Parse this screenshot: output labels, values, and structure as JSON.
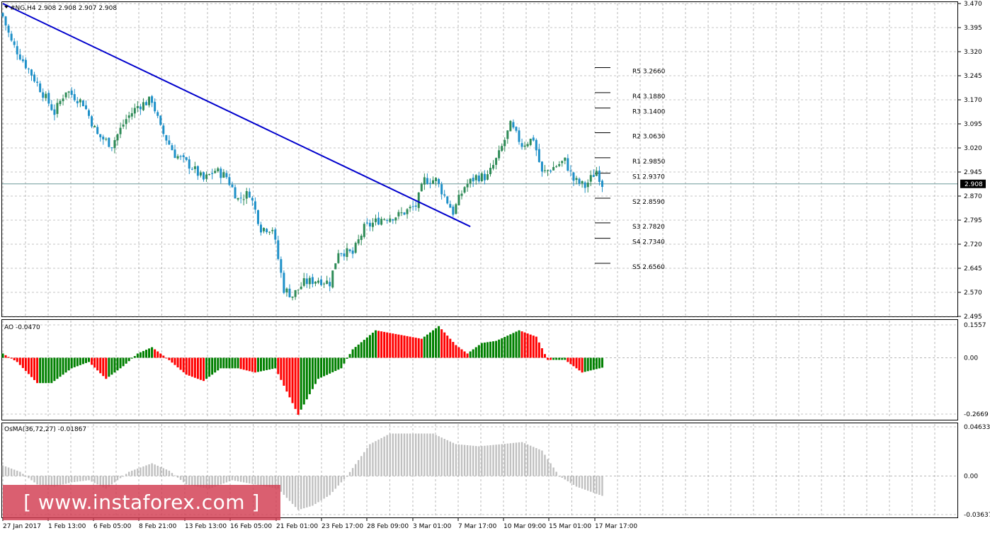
{
  "colors": {
    "trendline": "#0000cc",
    "candle_up": "#2e8b57",
    "candle_down": "#1e90c8",
    "ao_up": "#008000",
    "ao_down": "#ff0000",
    "osma": "#c0c0c0",
    "bid_line": "#6f9a9a",
    "watermark_bg": "#d23c50"
  },
  "main_panel": {
    "title": "#NG,H4  2.908 2.908 2.907 2.908",
    "current_price": "2.908",
    "y_ticks": [
      "3.470",
      "3.395",
      "3.320",
      "3.245",
      "3.170",
      "3.095",
      "3.020",
      "2.945",
      "2.870",
      "2.795",
      "2.720",
      "2.645",
      "2.570",
      "2.495"
    ],
    "pivot_levels": [
      {
        "label": "R5 3.2660",
        "value": 3.266
      },
      {
        "label": "R4 3.1880",
        "value": 3.188
      },
      {
        "label": "R3 3.1400",
        "value": 3.14
      },
      {
        "label": "R2 3.0630",
        "value": 3.063
      },
      {
        "label": "R1 2.9850",
        "value": 2.985
      },
      {
        "label": "S1 2.9370",
        "value": 2.937
      },
      {
        "label": "S2 2.8590",
        "value": 2.859
      },
      {
        "label": "S3 2.7820",
        "value": 2.782
      },
      {
        "label": "S4 2.7340",
        "value": 2.734
      },
      {
        "label": "S5 2.6560",
        "value": 2.656
      }
    ]
  },
  "ao_panel": {
    "title": "AO -0.0470",
    "y_ticks": [
      "0.1557",
      "0.00",
      "-0.2669"
    ]
  },
  "osma_panel": {
    "title": "OsMA(36,72,27) -0.01867",
    "y_ticks": [
      "0.04633",
      "0.00",
      "-0.03637"
    ]
  },
  "x_ticks": [
    "27 Jan 2017",
    "1 Feb 13:00",
    "6 Feb 05:00",
    "8 Feb 21:00",
    "13 Feb 13:00",
    "16 Feb 05:00",
    "21 Feb 01:00",
    "23 Feb 17:00",
    "28 Feb 09:00",
    "3 Mar 01:00",
    "7 Mar 17:00",
    "10 Mar 09:00",
    "15 Mar 01:00",
    "17 Mar 17:00"
  ],
  "watermark": "[ www.instaforex.com ]",
  "chart_data": {
    "type": "candlestick",
    "title": "#NG,H4  2.908 2.908 2.907 2.908",
    "ylim": [
      2.495,
      3.47
    ],
    "close_path": [
      {
        "t": 0,
        "p": 3.43
      },
      {
        "t": 3,
        "p": 3.35
      },
      {
        "t": 10,
        "p": 3.25
      },
      {
        "t": 18,
        "p": 3.13
      },
      {
        "t": 22,
        "p": 3.2
      },
      {
        "t": 28,
        "p": 3.16
      },
      {
        "t": 33,
        "p": 3.06
      },
      {
        "t": 38,
        "p": 3.03
      },
      {
        "t": 43,
        "p": 3.11
      },
      {
        "t": 47,
        "p": 3.15
      },
      {
        "t": 52,
        "p": 3.17
      },
      {
        "t": 55,
        "p": 3.08
      },
      {
        "t": 60,
        "p": 3.0
      },
      {
        "t": 66,
        "p": 2.96
      },
      {
        "t": 70,
        "p": 2.92
      },
      {
        "t": 74,
        "p": 2.95
      },
      {
        "t": 78,
        "p": 2.93
      },
      {
        "t": 82,
        "p": 2.86
      },
      {
        "t": 86,
        "p": 2.88
      },
      {
        "t": 90,
        "p": 2.77
      },
      {
        "t": 94,
        "p": 2.77
      },
      {
        "t": 98,
        "p": 2.58
      },
      {
        "t": 101,
        "p": 2.56
      },
      {
        "t": 105,
        "p": 2.6
      },
      {
        "t": 110,
        "p": 2.61
      },
      {
        "t": 114,
        "p": 2.6
      },
      {
        "t": 117,
        "p": 2.7
      },
      {
        "t": 122,
        "p": 2.69
      },
      {
        "t": 126,
        "p": 2.77
      },
      {
        "t": 132,
        "p": 2.8
      },
      {
        "t": 138,
        "p": 2.81
      },
      {
        "t": 144,
        "p": 2.84
      },
      {
        "t": 147,
        "p": 2.92
      },
      {
        "t": 151,
        "p": 2.92
      },
      {
        "t": 154,
        "p": 2.87
      },
      {
        "t": 157,
        "p": 2.82
      },
      {
        "t": 161,
        "p": 2.9
      },
      {
        "t": 165,
        "p": 2.93
      },
      {
        "t": 169,
        "p": 2.93
      },
      {
        "t": 173,
        "p": 3.0
      },
      {
        "t": 177,
        "p": 3.09
      },
      {
        "t": 181,
        "p": 3.03
      },
      {
        "t": 185,
        "p": 3.05
      },
      {
        "t": 188,
        "p": 2.94
      },
      {
        "t": 192,
        "p": 2.96
      },
      {
        "t": 196,
        "p": 2.98
      },
      {
        "t": 199,
        "p": 2.92
      },
      {
        "t": 203,
        "p": 2.9
      },
      {
        "t": 207,
        "p": 2.95
      },
      {
        "t": 209,
        "p": 2.908
      }
    ],
    "trendline": {
      "from": {
        "t": 0,
        "p": 3.47
      },
      "to": {
        "t": 163,
        "p": 2.775
      }
    },
    "ao_path": [
      {
        "t": 0,
        "p": 0.02
      },
      {
        "t": 5,
        "p": -0.02
      },
      {
        "t": 12,
        "p": -0.12
      },
      {
        "t": 17,
        "p": -0.12
      },
      {
        "t": 24,
        "p": -0.05
      },
      {
        "t": 30,
        "p": -0.02
      },
      {
        "t": 36,
        "p": -0.1
      },
      {
        "t": 42,
        "p": -0.04
      },
      {
        "t": 47,
        "p": 0.02
      },
      {
        "t": 52,
        "p": 0.05
      },
      {
        "t": 57,
        "p": 0.0
      },
      {
        "t": 64,
        "p": -0.08
      },
      {
        "t": 70,
        "p": -0.11
      },
      {
        "t": 76,
        "p": -0.05
      },
      {
        "t": 82,
        "p": -0.05
      },
      {
        "t": 88,
        "p": -0.07
      },
      {
        "t": 95,
        "p": -0.05
      },
      {
        "t": 103,
        "p": -0.27
      },
      {
        "t": 110,
        "p": -0.1
      },
      {
        "t": 118,
        "p": -0.05
      },
      {
        "t": 122,
        "p": 0.04
      },
      {
        "t": 130,
        "p": 0.13
      },
      {
        "t": 138,
        "p": 0.11
      },
      {
        "t": 146,
        "p": 0.09
      },
      {
        "t": 152,
        "p": 0.15
      },
      {
        "t": 158,
        "p": 0.06
      },
      {
        "t": 162,
        "p": 0.02
      },
      {
        "t": 167,
        "p": 0.07
      },
      {
        "t": 172,
        "p": 0.08
      },
      {
        "t": 180,
        "p": 0.13
      },
      {
        "t": 186,
        "p": 0.1
      },
      {
        "t": 190,
        "p": -0.01
      },
      {
        "t": 196,
        "p": -0.01
      },
      {
        "t": 202,
        "p": -0.07
      },
      {
        "t": 209,
        "p": -0.047
      }
    ],
    "osma_path": [
      {
        "t": 0,
        "p": 0.01
      },
      {
        "t": 6,
        "p": 0.004
      },
      {
        "t": 12,
        "p": -0.008
      },
      {
        "t": 18,
        "p": -0.01
      },
      {
        "t": 24,
        "p": -0.006
      },
      {
        "t": 30,
        "p": -0.004
      },
      {
        "t": 36,
        "p": -0.012
      },
      {
        "t": 44,
        "p": 0.004
      },
      {
        "t": 52,
        "p": 0.012
      },
      {
        "t": 58,
        "p": 0.005
      },
      {
        "t": 64,
        "p": -0.008
      },
      {
        "t": 72,
        "p": -0.012
      },
      {
        "t": 80,
        "p": -0.004
      },
      {
        "t": 88,
        "p": -0.008
      },
      {
        "t": 96,
        "p": -0.012
      },
      {
        "t": 103,
        "p": -0.032
      },
      {
        "t": 108,
        "p": -0.028
      },
      {
        "t": 114,
        "p": -0.018
      },
      {
        "t": 120,
        "p": 0.0
      },
      {
        "t": 128,
        "p": 0.03
      },
      {
        "t": 135,
        "p": 0.04
      },
      {
        "t": 143,
        "p": 0.04
      },
      {
        "t": 150,
        "p": 0.04
      },
      {
        "t": 158,
        "p": 0.03
      },
      {
        "t": 166,
        "p": 0.028
      },
      {
        "t": 174,
        "p": 0.03
      },
      {
        "t": 181,
        "p": 0.032
      },
      {
        "t": 188,
        "p": 0.024
      },
      {
        "t": 194,
        "p": 0.0
      },
      {
        "t": 200,
        "p": -0.01
      },
      {
        "t": 209,
        "p": -0.0187
      }
    ],
    "ao_ylim": [
      -0.2669,
      0.1557
    ],
    "osma_ylim": [
      -0.03637,
      0.04633
    ]
  }
}
